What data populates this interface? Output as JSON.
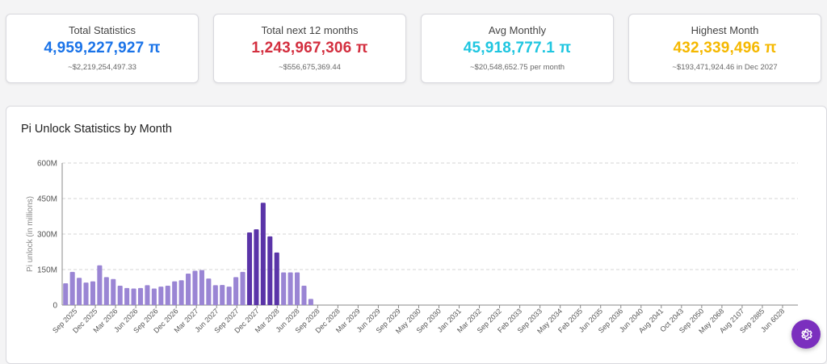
{
  "cards": [
    {
      "title": "Total Statistics",
      "value": "4,959,227,927 π",
      "sub": "~$2,219,254,497.33",
      "color": "#1a73e8"
    },
    {
      "title": "Total next 12 months",
      "value": "1,243,967,306 π",
      "sub": "~$556,675,369.44",
      "color": "#d32f3f"
    },
    {
      "title": "Avg Monthly",
      "value": "45,918,777.1 π",
      "sub": "~$20,548,652.75 per month",
      "color": "#1fc6e0"
    },
    {
      "title": "Highest Month",
      "value": "432,339,496 π",
      "sub": "~$193,471,924.46 in Dec 2027",
      "color": "#f5b800"
    }
  ],
  "panel": {
    "title": "Pi Unlock Statistics by Month"
  },
  "chart_data": {
    "type": "bar",
    "title": "Pi Unlock Statistics by Month",
    "ylabel": "Pi unlock (in millions)",
    "ylim": [
      0,
      600
    ],
    "yticks": [
      0,
      150,
      300,
      450,
      600
    ],
    "ytick_labels": [
      "0",
      "150M",
      "300M",
      "450M",
      "600M"
    ],
    "grid": true,
    "bar_color": "#9a85d4",
    "highlight_color": "#5a34a8",
    "highlight_threshold": 200,
    "xtick_labels": [
      "Sep 2025",
      "Dec 2025",
      "Mar 2026",
      "Jun 2026",
      "Sep 2026",
      "Dec 2026",
      "Mar 2027",
      "Jun 2027",
      "Sep 2027",
      "Dec 2027",
      "Mar 2028",
      "Jun 2028",
      "Sep 2028",
      "Dec 2028",
      "Mar 2029",
      "Jun 2029",
      "Sep 2029",
      "May 2030",
      "Sep 2030",
      "Jan 2031",
      "Mar 2032",
      "Sep 2032",
      "Feb 2033",
      "Sep 2033",
      "May 2034",
      "Feb 2035",
      "Jun 2035",
      "Sep 2036",
      "Jun 2040",
      "Aug 2041",
      "Oct 2043",
      "Sep 2050",
      "May 2068",
      "Aug 2107",
      "Sep 2885",
      "Jun 6028"
    ],
    "values": [
      92,
      140,
      115,
      95,
      100,
      168,
      118,
      110,
      82,
      72,
      70,
      72,
      84,
      70,
      78,
      82,
      100,
      105,
      133,
      145,
      148,
      112,
      84,
      85,
      78,
      118,
      140,
      307,
      320,
      432,
      290,
      222,
      138,
      138,
      138,
      82,
      26,
      0,
      0,
      0,
      0,
      0,
      0,
      0,
      0,
      0,
      0,
      0,
      0,
      0,
      0,
      0,
      0,
      0,
      0,
      0,
      0,
      0,
      0,
      0,
      0,
      0,
      0,
      0,
      0,
      0,
      0,
      0,
      0,
      0,
      0,
      0,
      0,
      0,
      0,
      0,
      0,
      0,
      0,
      0,
      0,
      0,
      0,
      0,
      0,
      0,
      0,
      0,
      0,
      0,
      0,
      0,
      0,
      0,
      0,
      0,
      0,
      0,
      0,
      0,
      0,
      0,
      0,
      0,
      0,
      0,
      0,
      0
    ]
  },
  "fab": {
    "icon": "gear-icon",
    "color": "#7b2fbe"
  }
}
